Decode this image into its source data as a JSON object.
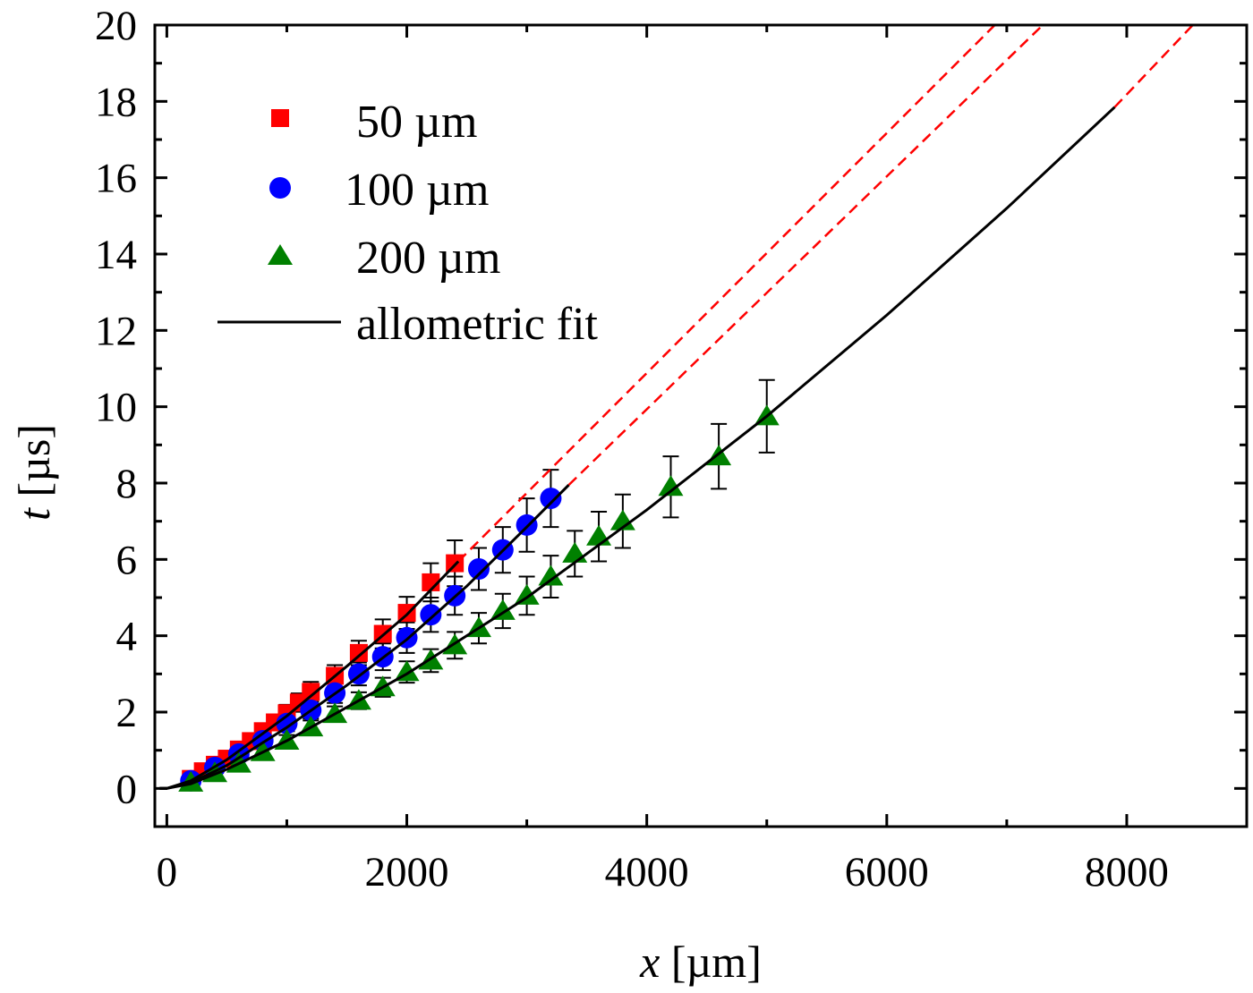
{
  "chart_data": {
    "type": "scatter",
    "xlabel": {
      "var": "x",
      "unit": " [µm]"
    },
    "ylabel": {
      "var": "t",
      "unit": " [µs]"
    },
    "xlim": [
      -100,
      9000
    ],
    "ylim": [
      -1,
      20
    ],
    "xticks": [
      0,
      2000,
      4000,
      6000,
      8000
    ],
    "xtick_labels": [
      "0",
      "2000",
      "4000",
      "6000",
      "8000"
    ],
    "x_minor_step": 1000,
    "yticks": [
      0,
      2,
      4,
      6,
      8,
      10,
      12,
      14,
      16,
      18,
      20
    ],
    "ytick_labels": [
      "0",
      "2",
      "4",
      "6",
      "8",
      "10",
      "12",
      "14",
      "16",
      "18",
      "20"
    ],
    "y_minor_step": 1,
    "grid": false,
    "legend_position": "top-left",
    "series": [
      {
        "name": "50 µm",
        "marker": "square",
        "color": "#ff0000",
        "x": [
          200,
          300,
          400,
          500,
          600,
          700,
          800,
          900,
          1000,
          1100,
          1200,
          1400,
          1600,
          1800,
          2000,
          2200,
          2400
        ],
        "y": [
          0.25,
          0.45,
          0.62,
          0.78,
          1.02,
          1.24,
          1.5,
          1.73,
          1.97,
          2.25,
          2.53,
          2.95,
          3.55,
          4.05,
          4.6,
          5.4,
          5.9
        ],
        "yerr": [
          0.1,
          0.1,
          0.1,
          0.12,
          0.14,
          0.16,
          0.18,
          0.2,
          0.22,
          0.24,
          0.26,
          0.28,
          0.32,
          0.38,
          0.42,
          0.5,
          0.6
        ]
      },
      {
        "name": "100 µm",
        "marker": "circle",
        "color": "#0000ff",
        "x": [
          200,
          400,
          600,
          800,
          1000,
          1200,
          1400,
          1600,
          1800,
          2000,
          2200,
          2400,
          2600,
          2800,
          3000,
          3200
        ],
        "y": [
          0.2,
          0.55,
          0.9,
          1.25,
          1.7,
          2.05,
          2.5,
          3.0,
          3.45,
          3.95,
          4.55,
          5.05,
          5.75,
          6.25,
          6.9,
          7.6
        ],
        "yerr": [
          0.1,
          0.1,
          0.12,
          0.15,
          0.2,
          0.22,
          0.26,
          0.3,
          0.35,
          0.4,
          0.45,
          0.5,
          0.55,
          0.6,
          0.7,
          0.75
        ]
      },
      {
        "name": "200 µm",
        "marker": "triangle",
        "color": "#008000",
        "x": [
          200,
          400,
          600,
          800,
          1000,
          1200,
          1400,
          1600,
          1800,
          2000,
          2200,
          2400,
          2600,
          2800,
          3000,
          3200,
          3400,
          3600,
          3800,
          4200,
          4600,
          5000
        ],
        "y": [
          0.15,
          0.4,
          0.65,
          0.95,
          1.25,
          1.6,
          1.95,
          2.3,
          2.65,
          3.05,
          3.35,
          3.75,
          4.2,
          4.65,
          5.05,
          5.55,
          6.15,
          6.6,
          7.0,
          7.9,
          8.7,
          9.75
        ],
        "yerr": [
          0.15,
          0.12,
          0.12,
          0.15,
          0.15,
          0.18,
          0.2,
          0.22,
          0.25,
          0.28,
          0.3,
          0.35,
          0.4,
          0.45,
          0.5,
          0.55,
          0.6,
          0.65,
          0.7,
          0.8,
          0.85,
          0.95
        ]
      }
    ],
    "fits": [
      {
        "name": "allometric fit",
        "for": "50 µm",
        "color": "#000000",
        "solid": [
          [
            -60,
            0
          ],
          [
            0,
            0
          ],
          [
            200,
            0.2
          ],
          [
            500,
            0.75
          ],
          [
            1000,
            1.9
          ],
          [
            1500,
            3.2
          ],
          [
            2000,
            4.55
          ],
          [
            2430,
            5.95
          ]
        ],
        "extrapolation": [
          [
            2430,
            5.95
          ],
          [
            6900,
            20
          ]
        ]
      },
      {
        "name": "allometric fit",
        "for": "100 µm",
        "color": "#000000",
        "solid": [
          [
            -60,
            0
          ],
          [
            0,
            0
          ],
          [
            200,
            0.15
          ],
          [
            500,
            0.6
          ],
          [
            1000,
            1.6
          ],
          [
            1500,
            2.7
          ],
          [
            2000,
            3.9
          ],
          [
            2500,
            5.3
          ],
          [
            3000,
            6.85
          ],
          [
            3350,
            7.95
          ]
        ],
        "extrapolation": [
          [
            3350,
            7.95
          ],
          [
            7300,
            20
          ]
        ]
      },
      {
        "name": "allometric fit",
        "for": "200 µm",
        "color": "#000000",
        "solid": [
          [
            -60,
            0
          ],
          [
            0,
            0
          ],
          [
            200,
            0.12
          ],
          [
            500,
            0.5
          ],
          [
            1000,
            1.25
          ],
          [
            2000,
            3.0
          ],
          [
            3000,
            5.0
          ],
          [
            4000,
            7.3
          ],
          [
            5000,
            9.75
          ],
          [
            6000,
            12.4
          ],
          [
            7000,
            15.2
          ],
          [
            7900,
            17.85
          ]
        ],
        "extrapolation": [
          [
            7900,
            17.85
          ],
          [
            8550,
            20
          ]
        ]
      }
    ],
    "extrapolation_style": {
      "color": "#ff0000",
      "dash": "dashed"
    },
    "legend": [
      "50 µm",
      "100 µm",
      "200 µm",
      "allometric fit"
    ]
  }
}
